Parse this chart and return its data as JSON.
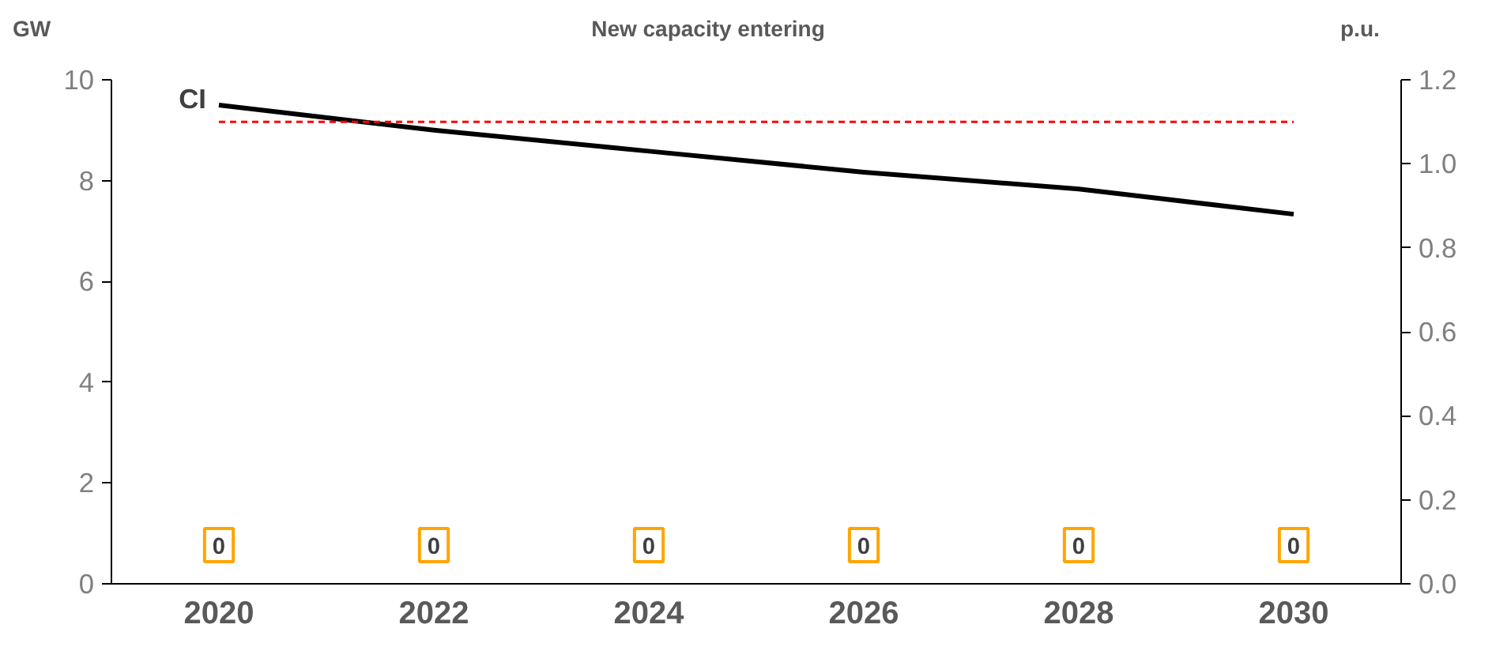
{
  "chart_data": {
    "type": "bar",
    "title": "New capacity entering",
    "ylabel": "GW",
    "y2label": "p.u.",
    "categories": [
      "2020",
      "2022",
      "2024",
      "2026",
      "2028",
      "2030"
    ],
    "series": [
      {
        "color": "#ffa500",
        "values": [
          0,
          0,
          0,
          0,
          0,
          0
        ],
        "value_labels": [
          "0",
          "0",
          "0",
          "0",
          "0",
          "0"
        ]
      },
      {
        "type": "line",
        "name": "CI",
        "axis": "y2",
        "color": "#000000",
        "values": [
          1.14,
          1.08,
          1.03,
          0.98,
          0.94,
          0.88
        ]
      }
    ],
    "ylim": [
      0,
      10
    ],
    "yticks": [
      0,
      2,
      4,
      6,
      8,
      10
    ],
    "y2lim": [
      0,
      1.2
    ],
    "y2ticks": [
      {
        "value": 0,
        "label": "0.0"
      },
      {
        "value": 0.2,
        "label": "0.2"
      },
      {
        "value": 0.4,
        "label": "0.4"
      },
      {
        "value": 0.6,
        "label": "0.6"
      },
      {
        "value": 0.8,
        "label": "0.8"
      },
      {
        "value": 1.0,
        "label": "1.0"
      },
      {
        "value": 1.2,
        "label": "1.2"
      }
    ],
    "ref_lines": [
      {
        "axis": "y2",
        "value": 1.1,
        "color": "#ff0000",
        "line_style": "dashed"
      }
    ],
    "grid": false,
    "legend": false
  }
}
